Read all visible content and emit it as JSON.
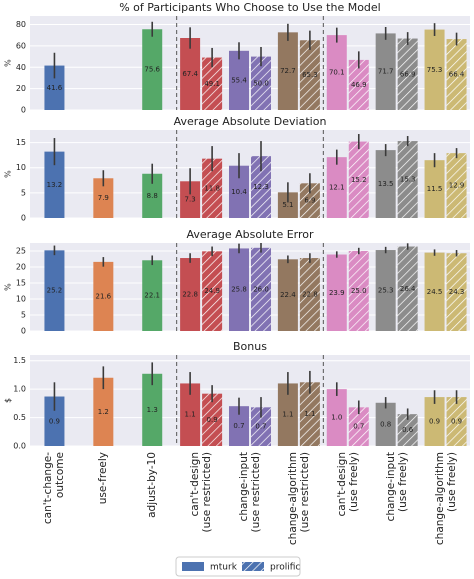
{
  "categories": [
    "can't-change-outcome",
    "use-freely",
    "adjust-by-10",
    "can't-design\n(use restricted)",
    "change-input\n(use restricted)",
    "change-algorithm\n(use restricted)",
    "can't-design\n(use freely)",
    "change-input\n(use freely)",
    "change-algorithm\n(use freely)"
  ],
  "category_colors": [
    "#4c72b0",
    "#dd8452",
    "#55a868",
    "#c44e52",
    "#8172b3",
    "#937860",
    "#da8bc3",
    "#8c8c8c",
    "#ccb974"
  ],
  "legend": [
    "mturk",
    "prolific"
  ],
  "chart_data": [
    {
      "type": "bar",
      "title": "% of Participants Who Choose to Use the Model",
      "ylabel": "%",
      "ylim": [
        0,
        88
      ],
      "yticks": [
        0,
        20,
        40,
        60,
        80
      ],
      "grid": true,
      "series": [
        {
          "values": [
            41.6,
            null,
            75.6,
            67.4,
            55.4,
            72.7,
            70.1,
            71.7,
            75.3
          ],
          "errors": [
            12,
            null,
            7,
            10,
            8,
            8,
            7,
            6,
            6
          ],
          "value_labels": [
            "41.6",
            null,
            "75.6",
            "67.4",
            "55.4",
            "72.7",
            "70.1",
            "71.7",
            "75.3"
          ]
        },
        {
          "values": [
            null,
            null,
            null,
            49.1,
            50.0,
            65.3,
            46.9,
            66.9,
            66.4
          ],
          "errors": [
            null,
            null,
            null,
            9,
            9,
            9,
            8,
            6,
            6
          ],
          "value_labels": [
            null,
            null,
            null,
            "49.1",
            "50.0",
            "65.3",
            "46.9",
            "66.9",
            "66.4"
          ]
        }
      ]
    },
    {
      "type": "bar",
      "title": "Average Absolute Deviation",
      "ylabel": "%",
      "ylim": [
        0,
        17.5
      ],
      "yticks": [
        0,
        5,
        10,
        15
      ],
      "grid": true,
      "series": [
        {
          "values": [
            13.2,
            7.9,
            8.8,
            7.3,
            10.4,
            5.1,
            12.1,
            13.5,
            11.5
          ],
          "errors": [
            2.7,
            1.6,
            2,
            2.6,
            2.5,
            2,
            1.5,
            1.2,
            1.4
          ],
          "value_labels": [
            "13.2",
            "7.9",
            "8.8",
            "7.3",
            "10.4",
            "5.1",
            "12.1",
            "13.5",
            "11.5"
          ]
        },
        {
          "values": [
            null,
            null,
            null,
            11.8,
            12.3,
            6.9,
            15.2,
            15.3,
            12.9
          ],
          "errors": [
            null,
            null,
            null,
            2.5,
            3,
            2,
            1.5,
            1,
            1
          ],
          "value_labels": [
            null,
            null,
            null,
            "11.8",
            "12.3",
            "6.9",
            "15.2",
            "15.3",
            "12.9"
          ]
        }
      ]
    },
    {
      "type": "bar",
      "title": "Average Absolute Error",
      "ylabel": "%",
      "ylim": [
        0,
        27.5
      ],
      "yticks": [
        0,
        5,
        10,
        15,
        20,
        25
      ],
      "grid": true,
      "series": [
        {
          "values": [
            25.2,
            21.6,
            22.1,
            22.8,
            25.8,
            22.4,
            23.9,
            25.3,
            24.5
          ],
          "errors": [
            1.5,
            1.5,
            1.5,
            1.5,
            1.5,
            1.2,
            1,
            1,
            1
          ],
          "value_labels": [
            "25.2",
            "21.6",
            "22.1",
            "22.8",
            "25.8",
            "22.4",
            "23.9",
            "25.3",
            "24.5"
          ]
        },
        {
          "values": [
            null,
            null,
            null,
            24.9,
            26.0,
            22.8,
            25.0,
            26.4,
            24.3
          ],
          "errors": [
            null,
            null,
            null,
            1.5,
            1.5,
            1.5,
            1,
            1,
            1
          ],
          "value_labels": [
            null,
            null,
            null,
            "24.9",
            "26.0",
            "22.8",
            "25.0",
            "26.4",
            "24.3"
          ]
        }
      ]
    },
    {
      "type": "bar",
      "title": "Bonus",
      "ylabel": "$",
      "ylim": [
        0,
        1.6
      ],
      "yticks": [
        {
          "value": 0,
          "label": "0.0"
        },
        0.5,
        {
          "value": 1,
          "label": "1.0"
        },
        1.5
      ],
      "grid": true,
      "series": [
        {
          "values": [
            0.87,
            1.2,
            1.27,
            1.1,
            0.7,
            1.1,
            1.0,
            0.76,
            0.86
          ],
          "errors": [
            0.25,
            0.2,
            0.2,
            0.2,
            0.15,
            0.2,
            0.12,
            0.1,
            0.12
          ],
          "value_labels": [
            "0.9",
            "1.2",
            "1.3",
            "1.1",
            "0.7",
            "1.1",
            "1.0",
            "0.8",
            "0.9"
          ]
        },
        {
          "values": [
            null,
            null,
            null,
            0.92,
            0.68,
            1.12,
            0.68,
            0.56,
            0.86
          ],
          "errors": [
            null,
            null,
            null,
            0.15,
            0.18,
            0.2,
            0.12,
            0.1,
            0.12
          ],
          "value_labels": [
            null,
            null,
            null,
            "0.9",
            "0.7",
            "1.1",
            "0.7",
            "0.6",
            "0.9"
          ]
        }
      ]
    }
  ]
}
